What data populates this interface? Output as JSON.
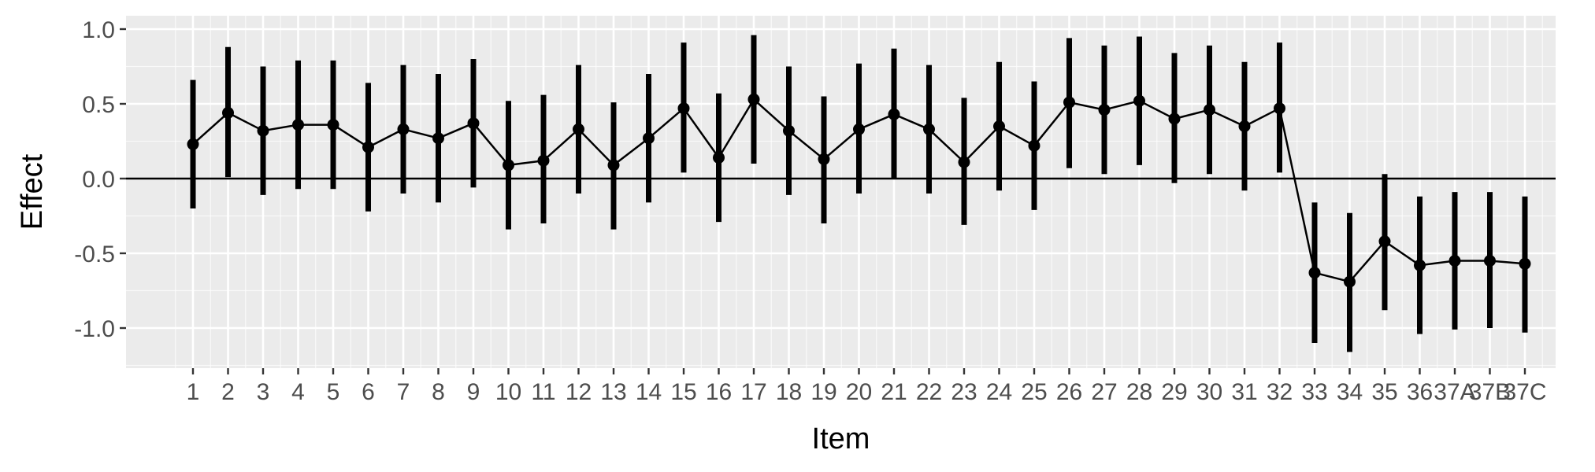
{
  "chart_data": {
    "type": "line",
    "title": "",
    "xlabel": "Item",
    "ylabel": "Effect",
    "ylim": [
      -1.25,
      1.1
    ],
    "yticks": [
      1.0,
      0.5,
      0.0,
      -0.5,
      -1.0
    ],
    "ytick_labels": [
      "1.0",
      "0.5",
      "0.0",
      "-0.5",
      "-1.0"
    ],
    "grid": true,
    "reference_line_y": 0,
    "categories": [
      "1",
      "2",
      "3",
      "4",
      "5",
      "6",
      "7",
      "8",
      "9",
      "10",
      "11",
      "12",
      "13",
      "14",
      "15",
      "16",
      "17",
      "18",
      "19",
      "20",
      "21",
      "22",
      "23",
      "24",
      "25",
      "26",
      "27",
      "28",
      "29",
      "30",
      "31",
      "32",
      "33",
      "34",
      "35",
      "36",
      "37A",
      "37B",
      "37C"
    ],
    "series": [
      {
        "values": [
          0.23,
          0.44,
          0.32,
          0.36,
          0.36,
          0.21,
          0.33,
          0.27,
          0.37,
          0.09,
          0.12,
          0.33,
          0.09,
          0.27,
          0.47,
          0.14,
          0.53,
          0.32,
          0.13,
          0.33,
          0.43,
          0.33,
          0.11,
          0.35,
          0.22,
          0.51,
          0.46,
          0.52,
          0.4,
          0.46,
          0.35,
          0.47,
          -0.63,
          -0.69,
          -0.42,
          -0.58,
          -0.55,
          -0.55,
          -0.57
        ],
        "lower": [
          -0.2,
          0.01,
          -0.11,
          -0.07,
          -0.07,
          -0.22,
          -0.1,
          -0.16,
          -0.06,
          -0.34,
          -0.3,
          -0.1,
          -0.34,
          -0.16,
          0.04,
          -0.29,
          0.1,
          -0.11,
          -0.3,
          -0.1,
          0.0,
          -0.1,
          -0.31,
          -0.08,
          -0.21,
          0.07,
          0.03,
          0.09,
          -0.03,
          0.03,
          -0.08,
          0.04,
          -1.1,
          -1.16,
          -0.88,
          -1.04,
          -1.01,
          -1.0,
          -1.03
        ],
        "upper": [
          0.66,
          0.88,
          0.75,
          0.79,
          0.79,
          0.64,
          0.76,
          0.7,
          0.8,
          0.52,
          0.56,
          0.76,
          0.51,
          0.7,
          0.91,
          0.57,
          0.96,
          0.75,
          0.55,
          0.77,
          0.87,
          0.76,
          0.54,
          0.78,
          0.65,
          0.94,
          0.89,
          0.95,
          0.84,
          0.89,
          0.78,
          0.91,
          -0.16,
          -0.23,
          0.03,
          -0.12,
          -0.09,
          -0.09,
          -0.12
        ]
      }
    ],
    "colors": {
      "panel": "#ebebeb",
      "grid_major": "#ffffff",
      "ink": "#000000",
      "tick_text": "#4d4d4d"
    }
  }
}
